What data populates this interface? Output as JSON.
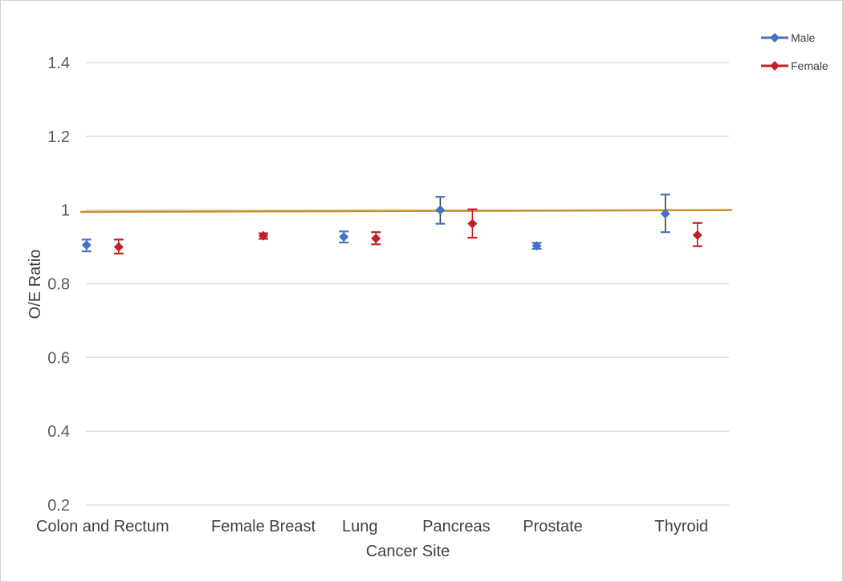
{
  "chart_data": {
    "type": "scatter",
    "title": "",
    "xlabel": "Cancer Site",
    "ylabel": "O/E Ratio",
    "ylim": [
      0.2,
      1.5
    ],
    "yticks": [
      "0.2",
      "0.4",
      "0.6",
      "0.8",
      "1",
      "1.2",
      "1.4"
    ],
    "categories": [
      "Colon and Rectum",
      "Female Breast",
      "Lung",
      "Pancreas",
      "Prostate",
      "Thyroid"
    ],
    "grid": true,
    "legend_position": "top-right",
    "reference_line": {
      "start": 0.995,
      "end": 1.0,
      "color": "#C9902A"
    },
    "series": [
      {
        "name": "Male",
        "color": "#4472C4",
        "points": [
          {
            "category": "Colon and Rectum",
            "value": 0.905,
            "lower": 0.888,
            "upper": 0.92
          },
          {
            "category": "Lung",
            "value": 0.927,
            "lower": 0.912,
            "upper": 0.942
          },
          {
            "category": "Pancreas",
            "value": 1.0,
            "lower": 0.963,
            "upper": 1.036
          },
          {
            "category": "Prostate",
            "value": 0.903,
            "lower": 0.895,
            "upper": 0.911
          },
          {
            "category": "Thyroid",
            "value": 0.99,
            "lower": 0.94,
            "upper": 1.042
          }
        ]
      },
      {
        "name": "Female",
        "color": "#C0202A",
        "points": [
          {
            "category": "Colon and Rectum",
            "value": 0.9,
            "lower": 0.882,
            "upper": 0.92
          },
          {
            "category": "Female Breast",
            "value": 0.93,
            "lower": 0.922,
            "upper": 0.937
          },
          {
            "category": "Lung",
            "value": 0.923,
            "lower": 0.907,
            "upper": 0.94
          },
          {
            "category": "Pancreas",
            "value": 0.963,
            "lower": 0.925,
            "upper": 1.002
          },
          {
            "category": "Thyroid",
            "value": 0.932,
            "lower": 0.902,
            "upper": 0.965
          }
        ]
      }
    ]
  }
}
